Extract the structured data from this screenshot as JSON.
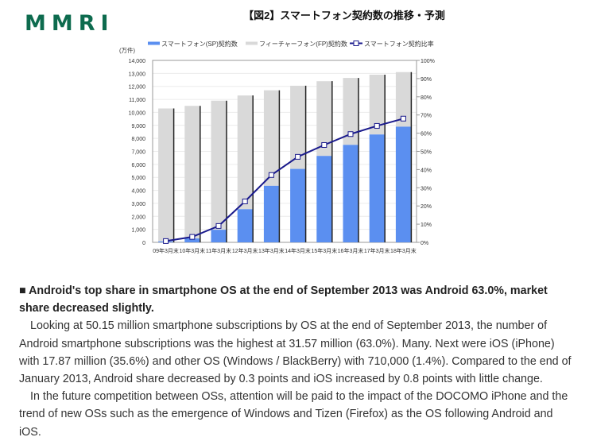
{
  "header": {
    "logo": "MMRI"
  },
  "chart_data": {
    "type": "bar",
    "title": "【図2】スマートフォン契約数の推移・予測",
    "unit_label": "(万件)",
    "xlabel": "",
    "ylabel": "(万件)",
    "y2label": "",
    "ylim": [
      0,
      14000
    ],
    "y2lim": [
      0,
      100
    ],
    "yticks": [
      "0",
      "1,000",
      "2,000",
      "3,000",
      "4,000",
      "5,000",
      "6,000",
      "7,000",
      "8,000",
      "9,000",
      "10,000",
      "11,000",
      "12,000",
      "13,000",
      "14,000"
    ],
    "y2ticks": [
      "0%",
      "10%",
      "20%",
      "30%",
      "40%",
      "50%",
      "60%",
      "70%",
      "80%",
      "90%",
      "100%"
    ],
    "categories": [
      "09年3月末",
      "10年3月末",
      "11年3月末",
      "12年3月末",
      "13年3月末",
      "14年3月末",
      "15年3月末",
      "16年3月末",
      "17年3月末",
      "18年3月末"
    ],
    "stacked": true,
    "grid": true,
    "legend_position": "top",
    "series": [
      {
        "name": "スマートフォン(SP)契約数",
        "type": "bar",
        "axis": "left",
        "color": "#5b8ff0",
        "values": [
          70,
          300,
          970,
          2550,
          4350,
          5650,
          6650,
          7500,
          8300,
          8900
        ]
      },
      {
        "name": "フィーチャーフォン(FP)契約数",
        "type": "bar",
        "axis": "left",
        "color": "#d9d9d9",
        "values": [
          10230,
          10200,
          9930,
          8750,
          7350,
          6400,
          5750,
          5150,
          4600,
          4200
        ]
      },
      {
        "name": "スマートフォン契約比率",
        "type": "line",
        "axis": "right",
        "color": "#1a1a8c",
        "marker": "square",
        "values": [
          0.7,
          3.0,
          9.0,
          22.5,
          37.0,
          47.0,
          53.5,
          59.5,
          64.0,
          68.0
        ]
      }
    ]
  },
  "article": {
    "headline": "■ Android's top share in smartphone OS at the end of September 2013 was Android 63.0%, market share decreased slightly.",
    "paragraph1": "Looking at 50.15 million smartphone subscriptions by OS at the end of September 2013, the number of Android smartphone subscriptions was the highest at 31.57 million (63.0%). Many. Next were iOS (iPhone) with 17.87 million (35.6%) and other OS (Windows / BlackBerry) with 710,000 (1.4%). Compared to the end of January 2013, Android share decreased by 0.3 points and iOS increased by 0.8 points with little change.",
    "paragraph2": "In the future competition between OSs, attention will be paid to the impact of the DOCOMO iPhone and the trend of new OSs such as the emergence of Windows and Tizen (Firefox) as the OS following Android and iOS."
  }
}
